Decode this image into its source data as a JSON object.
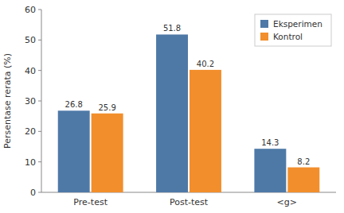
{
  "chart_data": {
    "type": "bar",
    "y_label": "Persentase rerata (%)",
    "categories": [
      "Pre-test",
      "Post-test",
      "<g>"
    ],
    "series": [
      {
        "name": "Eksperimen",
        "color": "#4e79a7",
        "values": [
          26.8,
          51.8,
          14.3
        ]
      },
      {
        "name": "Kontrol",
        "color": "#f28e2b",
        "values": [
          25.9,
          40.2,
          8.2
        ]
      }
    ],
    "ylim": [
      0,
      60
    ],
    "yticks": [
      0,
      10,
      20,
      30,
      40,
      50,
      60
    ],
    "grid": false,
    "legend": "upper-right",
    "data_labels": true
  }
}
